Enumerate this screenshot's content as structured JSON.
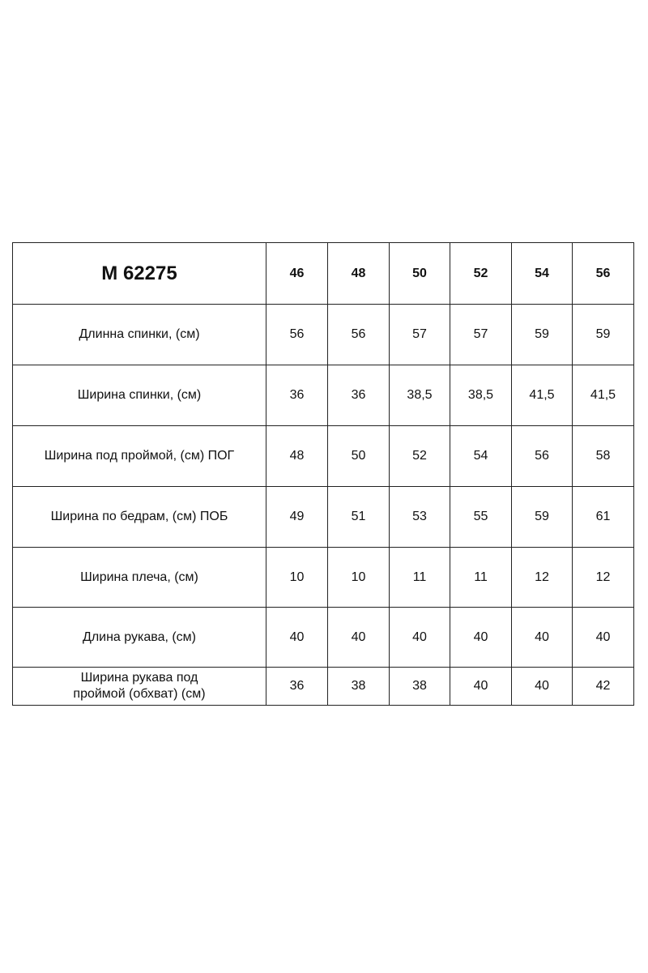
{
  "table": {
    "title": "М 62275",
    "sizes": [
      "46",
      "48",
      "50",
      "52",
      "54",
      "56"
    ],
    "rows": [
      {
        "label": "Длинна спинки, (см)",
        "values": [
          "56",
          "56",
          "57",
          "57",
          "59",
          "59"
        ]
      },
      {
        "label": "Ширина спинки, (см)",
        "values": [
          "36",
          "36",
          "38,5",
          "38,5",
          "41,5",
          "41,5"
        ]
      },
      {
        "label": "Ширина под проймой, (см) ПОГ",
        "values": [
          "48",
          "50",
          "52",
          "54",
          "56",
          "58"
        ]
      },
      {
        "label": "Ширина по бедрам, (см) ПОБ",
        "values": [
          "49",
          "51",
          "53",
          "55",
          "59",
          "61"
        ]
      },
      {
        "label": "Ширина плеча, (см)",
        "values": [
          "10",
          "10",
          "11",
          "11",
          "12",
          "12"
        ]
      },
      {
        "label": "Длина рукава, (см)",
        "values": [
          "40",
          "40",
          "40",
          "40",
          "40",
          "40"
        ]
      },
      {
        "label": "Ширина рукава под проймой (обхват) (см)",
        "values": [
          "36",
          "38",
          "38",
          "40",
          "40",
          "42"
        ]
      }
    ]
  }
}
